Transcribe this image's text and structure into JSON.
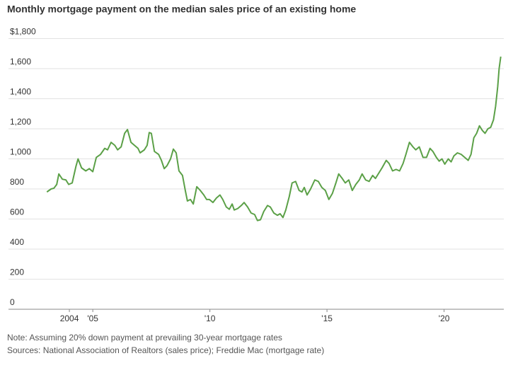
{
  "chart_data": {
    "type": "line",
    "title": "Monthly mortgage payment on the median sales price of an existing home",
    "notes": [
      "Note: Assuming 20% down payment at prevailing 30-year mortgage rates",
      "Sources: National Association of Realtors (sales price); Freddie Mac (mortgage rate)"
    ],
    "x": [
      2003.04,
      2003.22,
      2003.34,
      2003.46,
      2003.55,
      2003.7,
      2003.85,
      2003.97,
      2004.12,
      2004.28,
      2004.37,
      2004.52,
      2004.7,
      2004.85,
      2005.0,
      2005.15,
      2005.33,
      2005.51,
      2005.63,
      2005.78,
      2005.94,
      2006.06,
      2006.21,
      2006.36,
      2006.48,
      2006.63,
      2006.78,
      2006.93,
      2007.02,
      2007.2,
      2007.32,
      2007.41,
      2007.5,
      2007.63,
      2007.81,
      2007.93,
      2008.05,
      2008.17,
      2008.32,
      2008.44,
      2008.56,
      2008.68,
      2008.83,
      2008.95,
      2009.04,
      2009.17,
      2009.29,
      2009.44,
      2009.59,
      2009.74,
      2009.86,
      2009.98,
      2010.13,
      2010.28,
      2010.43,
      2010.55,
      2010.7,
      2010.83,
      2010.95,
      2011.04,
      2011.19,
      2011.34,
      2011.46,
      2011.61,
      2011.76,
      2011.91,
      2012.03,
      2012.16,
      2012.3,
      2012.46,
      2012.58,
      2012.73,
      2012.88,
      2013.0,
      2013.12,
      2013.24,
      2013.39,
      2013.51,
      2013.66,
      2013.81,
      2013.93,
      2014.03,
      2014.15,
      2014.3,
      2014.48,
      2014.63,
      2014.78,
      2014.93,
      2015.08,
      2015.23,
      2015.38,
      2015.5,
      2015.65,
      2015.78,
      2015.93,
      2016.08,
      2016.23,
      2016.38,
      2016.5,
      2016.65,
      2016.8,
      2016.95,
      2017.07,
      2017.19,
      2017.35,
      2017.53,
      2017.65,
      2017.8,
      2017.95,
      2018.1,
      2018.25,
      2018.37,
      2018.52,
      2018.67,
      2018.79,
      2018.94,
      2019.1,
      2019.25,
      2019.4,
      2019.52,
      2019.67,
      2019.79,
      2019.91,
      2020.03,
      2020.18,
      2020.3,
      2020.42,
      2020.57,
      2020.73,
      2020.88,
      2021.03,
      2021.15,
      2021.27,
      2021.39,
      2021.51,
      2021.63,
      2021.75,
      2021.87,
      2021.99,
      2022.11,
      2022.2,
      2022.29,
      2022.35,
      2022.42
    ],
    "series": [
      {
        "color": "#5ba047",
        "values": [
          780,
          800,
          805,
          830,
          900,
          865,
          860,
          830,
          840,
          950,
          1000,
          940,
          920,
          935,
          915,
          1010,
          1030,
          1070,
          1060,
          1110,
          1090,
          1060,
          1080,
          1170,
          1195,
          1110,
          1090,
          1070,
          1040,
          1060,
          1090,
          1175,
          1170,
          1050,
          1030,
          990,
          935,
          955,
          1000,
          1065,
          1040,
          920,
          890,
          790,
          720,
          730,
          700,
          815,
          790,
          760,
          730,
          730,
          710,
          740,
          760,
          730,
          680,
          665,
          700,
          660,
          670,
          690,
          710,
          680,
          640,
          630,
          590,
          595,
          650,
          690,
          680,
          640,
          625,
          635,
          610,
          660,
          750,
          840,
          850,
          790,
          780,
          810,
          760,
          800,
          860,
          850,
          810,
          790,
          730,
          770,
          840,
          900,
          870,
          840,
          860,
          790,
          830,
          860,
          900,
          860,
          850,
          890,
          870,
          900,
          940,
          990,
          970,
          920,
          930,
          920,
          970,
          1030,
          1110,
          1080,
          1060,
          1080,
          1010,
          1010,
          1070,
          1050,
          1010,
          985,
          1000,
          965,
          1000,
          980,
          1020,
          1040,
          1030,
          1010,
          990,
          1030,
          1140,
          1170,
          1220,
          1190,
          1170,
          1200,
          1210,
          1260,
          1350,
          1480,
          1600,
          1680
        ]
      }
    ],
    "xlim": [
      2001.4,
      2022.55
    ],
    "xticks": [
      2004,
      {
        "value": 2005,
        "label": "'05"
      },
      {
        "value": 2010,
        "label": "'10"
      },
      {
        "value": 2015,
        "label": "'15"
      },
      {
        "value": 2020,
        "label": "'20"
      }
    ],
    "ylim": [
      0,
      1800
    ],
    "yticks": [
      0,
      200,
      400,
      600,
      800,
      {
        "value": 1000,
        "label": "1,000"
      },
      {
        "value": 1200,
        "label": "1,200"
      },
      {
        "value": 1400,
        "label": "1,400"
      },
      {
        "value": 1600,
        "label": "1,600"
      },
      {
        "value": 1800,
        "label": "$1,800"
      }
    ],
    "grid": true
  }
}
